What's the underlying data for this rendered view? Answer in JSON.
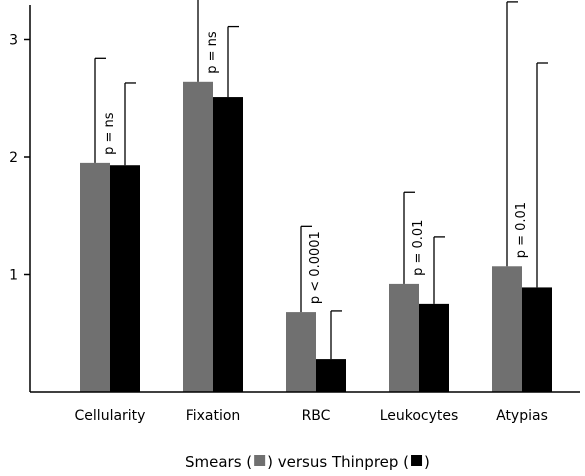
{
  "chart_data": {
    "type": "bar",
    "categories": [
      "Cellularity",
      "Fixation",
      "RBC",
      "Leukocytes",
      "Atypias"
    ],
    "series": [
      {
        "name": "Smears",
        "color": "#707070",
        "values": [
          1.95,
          2.64,
          0.68,
          0.92,
          1.07
        ],
        "error_upper": [
          2.84,
          3.36,
          1.41,
          1.7,
          3.32
        ]
      },
      {
        "name": "Thinprep",
        "color": "#000000",
        "values": [
          1.93,
          2.51,
          0.28,
          0.75,
          0.89
        ],
        "error_upper": [
          2.63,
          3.11,
          0.69,
          1.32,
          2.8
        ]
      }
    ],
    "p_values": [
      "p = ns",
      "p = ns",
      "p < 0.0001",
      "p = 0.01",
      "p = 0.01"
    ],
    "yticks": [
      "1",
      "2",
      "3"
    ],
    "ylim": [
      0,
      3.3
    ],
    "legend": {
      "prefix": "Smears (",
      "middle": ") versus Thinprep (",
      "suffix": ")"
    }
  }
}
